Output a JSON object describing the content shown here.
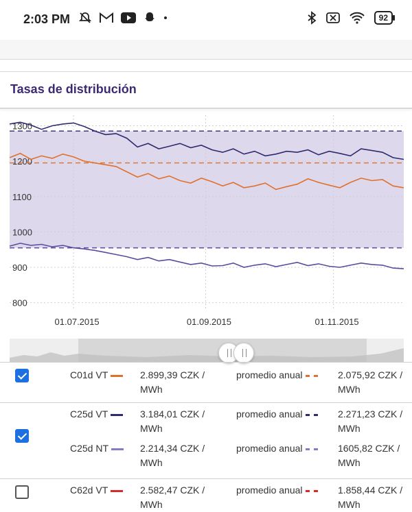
{
  "status_bar": {
    "time": "2:03 PM",
    "battery": "92",
    "left_icons": [
      "notifications-off-icon",
      "gmail-icon",
      "youtube-icon",
      "snapchat-icon",
      "dot-icon"
    ],
    "right_icons": [
      "bluetooth-icon",
      "no-sim-icon",
      "wifi-icon",
      "battery-icon"
    ]
  },
  "page": {
    "title": "Tasas de distribución"
  },
  "chart_data": {
    "type": "line",
    "title": "",
    "ylim": [
      780,
      1330
    ],
    "yticks": [
      "1300",
      "1200",
      "1100",
      "1000",
      "900",
      "800"
    ],
    "ytick_values": [
      1300,
      1200,
      1100,
      1000,
      900,
      800
    ],
    "xticks": [
      "01.07.2015",
      "01.09.2015",
      "01.11.2015"
    ],
    "x_range_days": [
      0,
      185
    ],
    "xtick_days": [
      30,
      92,
      152
    ],
    "band": {
      "upper": 1285,
      "lower": 955
    },
    "series": [
      {
        "name": "C25d VT",
        "color": "#2e2a6e",
        "x_days": [
          0,
          5,
          10,
          15,
          20,
          25,
          30,
          35,
          40,
          45,
          50,
          55,
          60,
          65,
          70,
          75,
          80,
          85,
          90,
          95,
          100,
          105,
          110,
          115,
          120,
          125,
          130,
          135,
          140,
          145,
          150,
          155,
          160,
          165,
          170,
          175,
          180,
          185
        ],
        "values": [
          1305,
          1310,
          1302,
          1290,
          1300,
          1305,
          1308,
          1298,
          1285,
          1275,
          1278,
          1265,
          1240,
          1250,
          1235,
          1242,
          1250,
          1238,
          1245,
          1232,
          1225,
          1235,
          1220,
          1228,
          1215,
          1220,
          1228,
          1225,
          1232,
          1218,
          1228,
          1222,
          1215,
          1235,
          1230,
          1225,
          1210,
          1205
        ]
      },
      {
        "name": "C01d VT",
        "color": "#e0702c",
        "x_days": [
          0,
          5,
          10,
          15,
          20,
          25,
          30,
          35,
          40,
          45,
          50,
          55,
          60,
          65,
          70,
          75,
          80,
          85,
          90,
          95,
          100,
          105,
          110,
          115,
          120,
          125,
          130,
          135,
          140,
          145,
          150,
          155,
          160,
          165,
          170,
          175,
          180,
          185
        ],
        "values": [
          1210,
          1222,
          1205,
          1215,
          1208,
          1220,
          1212,
          1200,
          1195,
          1190,
          1185,
          1170,
          1155,
          1165,
          1150,
          1158,
          1145,
          1138,
          1152,
          1142,
          1130,
          1140,
          1125,
          1130,
          1138,
          1120,
          1128,
          1135,
          1150,
          1140,
          1132,
          1125,
          1140,
          1152,
          1145,
          1148,
          1130,
          1125
        ]
      },
      {
        "name": "C25d NT",
        "color": "#5b4a9e",
        "x_days": [
          0,
          5,
          10,
          15,
          20,
          25,
          30,
          35,
          40,
          45,
          50,
          55,
          60,
          65,
          70,
          75,
          80,
          85,
          90,
          95,
          100,
          105,
          110,
          115,
          120,
          125,
          130,
          135,
          140,
          145,
          150,
          155,
          160,
          165,
          170,
          175,
          180,
          185
        ],
        "values": [
          960,
          968,
          962,
          965,
          958,
          962,
          955,
          952,
          948,
          942,
          936,
          930,
          922,
          928,
          918,
          922,
          915,
          908,
          912,
          904,
          905,
          912,
          900,
          906,
          910,
          902,
          908,
          914,
          905,
          910,
          903,
          900,
          906,
          912,
          908,
          906,
          898,
          896
        ]
      }
    ],
    "averages": [
      {
        "name": "C25d VT",
        "value": 1285,
        "color": "#2e2a6e"
      },
      {
        "name": "C01d VT",
        "value": 1195,
        "color": "#e0702c"
      },
      {
        "name": "C25d NT",
        "value": 955,
        "color": "#5b4a9e"
      }
    ]
  },
  "legend_rows": [
    {
      "checked": true,
      "entries": [
        {
          "name": "C01d VT",
          "color": "#e0702c",
          "value": "2.899,39 CZK / MWh",
          "avg_label": "promedio anual",
          "avg_color": "#e0702c",
          "avg_value": "2.075,92 CZK / MWh"
        }
      ]
    },
    {
      "checked": true,
      "entries": [
        {
          "name": "C25d VT",
          "color": "#2e2a6e",
          "value": "3.184,01 CZK / MWh",
          "avg_label": "promedio anual",
          "avg_color": "#2e2a6e",
          "avg_value": "2.271,23 CZK / MWh"
        },
        {
          "name": "C25d NT",
          "color": "#8a79c7",
          "value": "2.214,34 CZK / MWh",
          "avg_label": "promedio anual",
          "avg_color": "#8a79c7",
          "avg_value": "1605,82 CZK / MWh"
        }
      ]
    },
    {
      "checked": false,
      "entries": [
        {
          "name": "C62d VT",
          "color": "#d92a2a",
          "value": "2.582,47 CZK / MWh",
          "avg_label": "promedio anual",
          "avg_color": "#d92a2a",
          "avg_value": "1.858,44 CZK / MWh"
        }
      ]
    }
  ]
}
